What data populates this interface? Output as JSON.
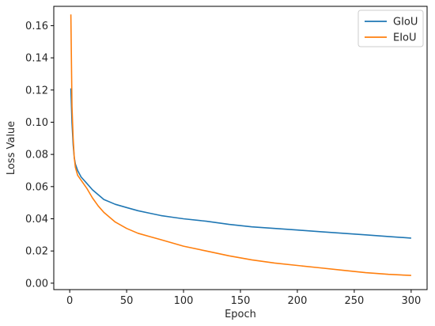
{
  "chart_data": {
    "type": "line",
    "title": "",
    "xlabel": "Epoch",
    "ylabel": "Loss Value",
    "xlim": [
      -14,
      314
    ],
    "ylim": [
      -0.004,
      0.172
    ],
    "xticks": [
      0,
      50,
      100,
      150,
      200,
      250,
      300
    ],
    "yticks": [
      0.0,
      0.02,
      0.04,
      0.06,
      0.08,
      0.1,
      0.12,
      0.14,
      0.16
    ],
    "xtick_labels": [
      "0",
      "50",
      "100",
      "150",
      "200",
      "250",
      "300"
    ],
    "ytick_labels": [
      "0.00",
      "0.02",
      "0.04",
      "0.06",
      "0.08",
      "0.10",
      "0.12",
      "0.14",
      "0.16"
    ],
    "grid": false,
    "legend_position": "top-right",
    "series": [
      {
        "name": "GIoU",
        "color": "#1f77b4",
        "x": [
          1,
          2,
          3,
          4,
          5,
          7,
          10,
          15,
          20,
          25,
          30,
          40,
          50,
          60,
          70,
          80,
          90,
          100,
          120,
          140,
          160,
          180,
          200,
          220,
          240,
          260,
          280,
          300
        ],
        "y": [
          0.121,
          0.1,
          0.086,
          0.078,
          0.074,
          0.07,
          0.066,
          0.062,
          0.058,
          0.055,
          0.052,
          0.049,
          0.047,
          0.045,
          0.0435,
          0.042,
          0.041,
          0.04,
          0.0385,
          0.0365,
          0.035,
          0.034,
          0.033,
          0.032,
          0.031,
          0.03,
          0.029,
          0.028
        ]
      },
      {
        "name": "EIoU",
        "color": "#ff7f0e",
        "x": [
          1,
          2,
          3,
          4,
          5,
          7,
          10,
          15,
          20,
          25,
          30,
          40,
          50,
          60,
          70,
          80,
          90,
          100,
          120,
          140,
          160,
          180,
          200,
          220,
          240,
          260,
          280,
          300
        ],
        "y": [
          0.167,
          0.11,
          0.09,
          0.078,
          0.072,
          0.067,
          0.064,
          0.059,
          0.053,
          0.048,
          0.044,
          0.038,
          0.034,
          0.031,
          0.029,
          0.027,
          0.025,
          0.023,
          0.02,
          0.017,
          0.0145,
          0.0125,
          0.011,
          0.0095,
          0.008,
          0.0065,
          0.0055,
          0.0048
        ]
      }
    ]
  }
}
